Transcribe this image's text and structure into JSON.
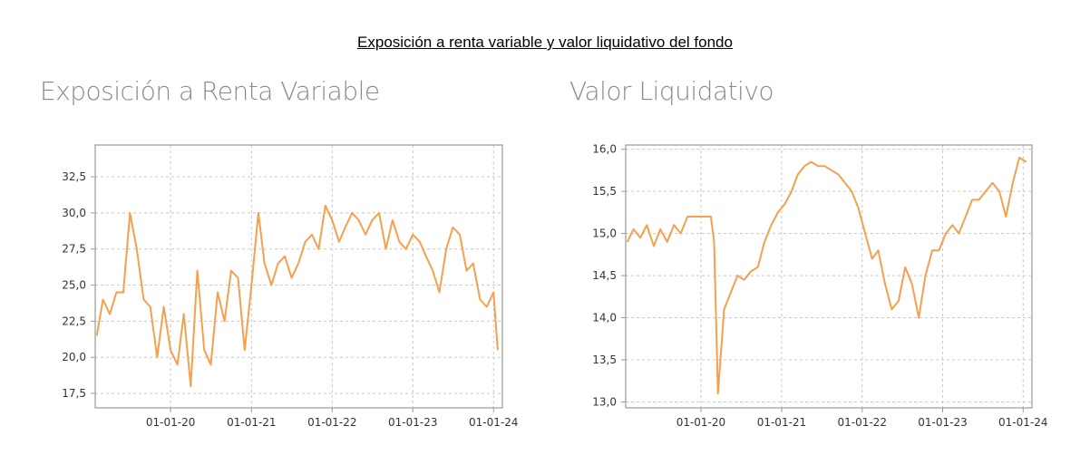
{
  "header": {
    "title": "Exposición a renta variable y valor liquidativo del fondo"
  },
  "colors": {
    "series": "#f5a04e",
    "grid": "#c8c8c8",
    "frame": "#9a9a9a"
  },
  "chart_data": [
    {
      "type": "line",
      "title": "Exposición a Renta Variable",
      "xlabel": "",
      "ylabel": "",
      "x_ticks": [
        "01-01-20",
        "01-01-21",
        "01-01-22",
        "01-01-23",
        "01-01-24"
      ],
      "y_ticks": [
        "17,5",
        "20,0",
        "22,5",
        "25,0",
        "27,5",
        "30,0",
        "32,5"
      ],
      "xlim": [
        "2019-01-25",
        "2024-02-10"
      ],
      "ylim": [
        16.5,
        34.7
      ],
      "grid": true,
      "series": [
        {
          "x": [
            "2019-02-01",
            "2019-03-01",
            "2019-04-01",
            "2019-05-01",
            "2019-06-01",
            "2019-07-01",
            "2019-08-01",
            "2019-09-01",
            "2019-10-01",
            "2019-11-01",
            "2019-12-01",
            "2020-01-01",
            "2020-02-01",
            "2020-03-01",
            "2020-04-01",
            "2020-05-01",
            "2020-06-01",
            "2020-07-01",
            "2020-08-01",
            "2020-09-01",
            "2020-10-01",
            "2020-11-01",
            "2020-12-01",
            "2021-01-01",
            "2021-02-01",
            "2021-03-01",
            "2021-04-01",
            "2021-05-01",
            "2021-06-01",
            "2021-07-01",
            "2021-08-01",
            "2021-09-01",
            "2021-10-01",
            "2021-11-01",
            "2021-12-01",
            "2022-01-01",
            "2022-02-01",
            "2022-03-01",
            "2022-04-01",
            "2022-05-01",
            "2022-06-01",
            "2022-07-01",
            "2022-08-01",
            "2022-09-01",
            "2022-10-01",
            "2022-11-01",
            "2022-12-01",
            "2023-01-01",
            "2023-02-01",
            "2023-03-01",
            "2023-04-01",
            "2023-05-01",
            "2023-06-01",
            "2023-07-01",
            "2023-08-01",
            "2023-09-01",
            "2023-10-01",
            "2023-11-01",
            "2023-12-01",
            "2024-01-01",
            "2024-01-20"
          ],
          "y": [
            21.5,
            24.0,
            23.0,
            24.5,
            24.5,
            30.0,
            27.5,
            24.0,
            23.5,
            20.0,
            23.5,
            20.5,
            19.5,
            23.0,
            18.0,
            26.0,
            20.5,
            19.5,
            24.5,
            22.5,
            26.0,
            25.5,
            20.5,
            25.0,
            30.0,
            26.5,
            25.0,
            26.5,
            27.0,
            25.5,
            26.5,
            28.0,
            28.5,
            27.5,
            30.5,
            29.5,
            28.0,
            29.0,
            30.0,
            29.5,
            28.5,
            29.5,
            30.0,
            27.5,
            29.5,
            28.0,
            27.5,
            28.5,
            28.0,
            27.0,
            26.0,
            24.5,
            27.5,
            29.0,
            28.5,
            26.0,
            26.5,
            24.0,
            23.5,
            24.5,
            20.5
          ]
        }
      ]
    },
    {
      "type": "line",
      "title": "Valor Liquidativo",
      "xlabel": "",
      "ylabel": "",
      "x_ticks": [
        "01-01-20",
        "01-01-21",
        "01-01-22",
        "01-01-23",
        "01-01-24"
      ],
      "y_ticks": [
        "13,0",
        "13,5",
        "14,0",
        "14,5",
        "15,0",
        "15,5",
        "16,0"
      ],
      "xlim": [
        "2019-01-25",
        "2024-02-10"
      ],
      "ylim": [
        12.93,
        16.05
      ],
      "grid": true,
      "series": [
        {
          "x": [
            "2019-02-01",
            "2019-03-01",
            "2019-04-01",
            "2019-05-01",
            "2019-06-01",
            "2019-07-01",
            "2019-08-01",
            "2019-09-01",
            "2019-10-01",
            "2019-11-01",
            "2019-12-01",
            "2020-01-01",
            "2020-02-15",
            "2020-03-01",
            "2020-03-18",
            "2020-04-15",
            "2020-05-15",
            "2020-06-15",
            "2020-07-15",
            "2020-08-15",
            "2020-09-15",
            "2020-10-15",
            "2020-11-15",
            "2020-12-15",
            "2021-01-15",
            "2021-02-15",
            "2021-03-15",
            "2021-04-15",
            "2021-05-15",
            "2021-06-15",
            "2021-07-15",
            "2021-08-15",
            "2021-09-15",
            "2021-10-15",
            "2021-11-15",
            "2021-12-15",
            "2022-01-15",
            "2022-02-15",
            "2022-03-15",
            "2022-04-15",
            "2022-05-15",
            "2022-06-15",
            "2022-07-15",
            "2022-08-15",
            "2022-09-15",
            "2022-10-15",
            "2022-11-15",
            "2022-12-15",
            "2023-01-15",
            "2023-02-15",
            "2023-03-15",
            "2023-04-15",
            "2023-05-15",
            "2023-06-15",
            "2023-07-15",
            "2023-08-15",
            "2023-09-15",
            "2023-10-15",
            "2023-11-15",
            "2023-12-15",
            "2024-01-15"
          ],
          "y": [
            14.9,
            15.05,
            14.95,
            15.1,
            14.85,
            15.05,
            14.9,
            15.1,
            15.0,
            15.2,
            15.2,
            15.2,
            15.2,
            14.9,
            13.1,
            14.1,
            14.3,
            14.5,
            14.45,
            14.55,
            14.6,
            14.9,
            15.1,
            15.25,
            15.35,
            15.5,
            15.7,
            15.8,
            15.85,
            15.8,
            15.8,
            15.75,
            15.7,
            15.6,
            15.5,
            15.3,
            15.0,
            14.7,
            14.8,
            14.4,
            14.1,
            14.2,
            14.6,
            14.4,
            14.0,
            14.5,
            14.8,
            14.8,
            15.0,
            15.1,
            15.0,
            15.2,
            15.4,
            15.4,
            15.5,
            15.6,
            15.5,
            15.2,
            15.6,
            15.9,
            15.85
          ]
        }
      ]
    }
  ]
}
